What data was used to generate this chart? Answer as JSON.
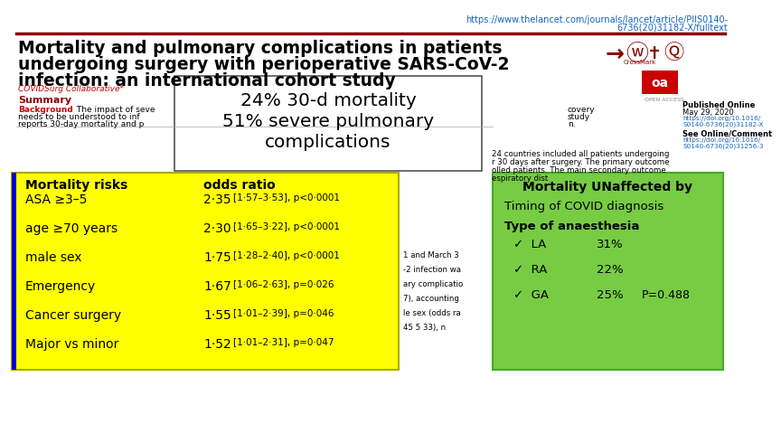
{
  "url_line1": "https://www.thelancet.com/journals/lancet/article/PIIS0140-",
  "url_line2": "6736(20)31182-X/fulltext",
  "title_line1": "Mortality and pulmonary complications in patients",
  "title_line2": "undergoing surgery with perioperative SARS-CoV-2",
  "title_line3": "infection: an international cohort study",
  "collaborators": "COVIDSurg Collaborative*",
  "summary_label": "Summary",
  "background_label": "Background",
  "bg_text1": " The impact of seve",
  "bg_text2": "needs to be understood to inf",
  "bg_text3": "reports 30-day mortality and p",
  "highlight_box_text1": "24% 30-d mortality",
  "highlight_box_text2": "51% severe pulmonary",
  "highlight_box_text3": "complications",
  "right_body_text": [
    "covery",
    "study",
    "n."
  ],
  "body_col2": [
    "24 countries included all patients undergoing",
    "r 30 days after surgery. The primary outcome",
    "olled patients. The main secondary outcome",
    "espiratory dist"
  ],
  "body_col3": [
    "1 and March 3",
    "-2 infection wa",
    "ary complicatio",
    "7), accounting",
    "le sex (odds ra",
    "45 5 33), n"
  ],
  "yellow_box": {
    "bg_color": "#FFFF00",
    "border_color": "#AAAA00",
    "header_risk": "Mortality risks",
    "header_odds": "odds ratio",
    "rows": [
      [
        "ASA ≥3–5",
        "2·35",
        "[1·57–3·53], p<0·0001"
      ],
      [
        "age ≥70 years",
        "2·30",
        "[1·65–3·22], p<0·0001"
      ],
      [
        "male sex",
        "1·75",
        "[1·28–2·40], p<0·0001"
      ],
      [
        "Emergency",
        "1·67",
        "[1·06–2·63], p=0·026"
      ],
      [
        "Cancer surgery",
        "1·55",
        "[1·01–2·39], p=0·046"
      ],
      [
        "Major vs minor",
        "1·52",
        "[1·01–2·31], p=0·047"
      ]
    ]
  },
  "green_box": {
    "bg_color": "#77CC44",
    "border_color": "#44AA22",
    "title": "Mortality UNaffected by",
    "item1": "Timing of COVID diagnosis",
    "item2": "Type of anaesthesia",
    "anaesthesia_rows": [
      [
        "✓  LA",
        "31%",
        ""
      ],
      [
        "✓  RA",
        "22%",
        ""
      ],
      [
        "✓  GA",
        "25%",
        "P=0.488"
      ]
    ]
  },
  "published_label": "Published Online",
  "published_date": "May 29, 2020",
  "doi1": "https://doi.org/10.1016/",
  "doi2": "S0140-6736(20)31182-X",
  "see_comment": "See Online/Comment",
  "doi3": "https://doi.org/10.1016/",
  "doi4": "S0140-6736(20)31256-3",
  "oa_label": "oa",
  "hr_color": "#8B0000",
  "bg_color": "#FFFFFF",
  "url_color": "#1565C0",
  "title_color": "#000000",
  "collaborators_color": "#CC0000",
  "summary_color": "#8B0000",
  "background_label_color": "#CC0000",
  "blue_bar_color": "#0000CC"
}
